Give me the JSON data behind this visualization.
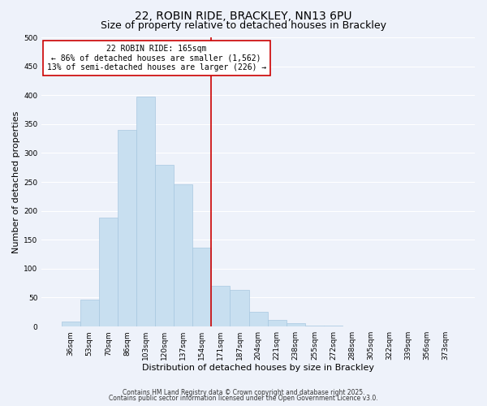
{
  "title": "22, ROBIN RIDE, BRACKLEY, NN13 6PU",
  "subtitle": "Size of property relative to detached houses in Brackley",
  "xlabel": "Distribution of detached houses by size in Brackley",
  "ylabel": "Number of detached properties",
  "bar_color": "#c8dff0",
  "bar_edge_color": "#a8c8e0",
  "categories": [
    "36sqm",
    "53sqm",
    "70sqm",
    "86sqm",
    "103sqm",
    "120sqm",
    "137sqm",
    "154sqm",
    "171sqm",
    "187sqm",
    "204sqm",
    "221sqm",
    "238sqm",
    "255sqm",
    "272sqm",
    "288sqm",
    "305sqm",
    "322sqm",
    "339sqm",
    "356sqm",
    "373sqm"
  ],
  "values": [
    8,
    46,
    188,
    340,
    398,
    280,
    246,
    136,
    70,
    63,
    25,
    12,
    6,
    2,
    1,
    0,
    0,
    0,
    0,
    0,
    0
  ],
  "vline_index": 8,
  "vline_color": "#cc0000",
  "ylim": [
    0,
    500
  ],
  "yticks": [
    0,
    50,
    100,
    150,
    200,
    250,
    300,
    350,
    400,
    450,
    500
  ],
  "annotation_title": "22 ROBIN RIDE: 165sqm",
  "annotation_line1": "← 86% of detached houses are smaller (1,562)",
  "annotation_line2": "13% of semi-detached houses are larger (226) →",
  "annotation_box_color": "#ffffff",
  "annotation_box_edge": "#cc0000",
  "footnote1": "Contains HM Land Registry data © Crown copyright and database right 2025.",
  "footnote2": "Contains public sector information licensed under the Open Government Licence v3.0.",
  "background_color": "#eef2fa",
  "grid_color": "#ffffff",
  "title_fontsize": 10,
  "subtitle_fontsize": 9,
  "label_fontsize": 8,
  "tick_fontsize": 6.5,
  "annot_fontsize": 7
}
